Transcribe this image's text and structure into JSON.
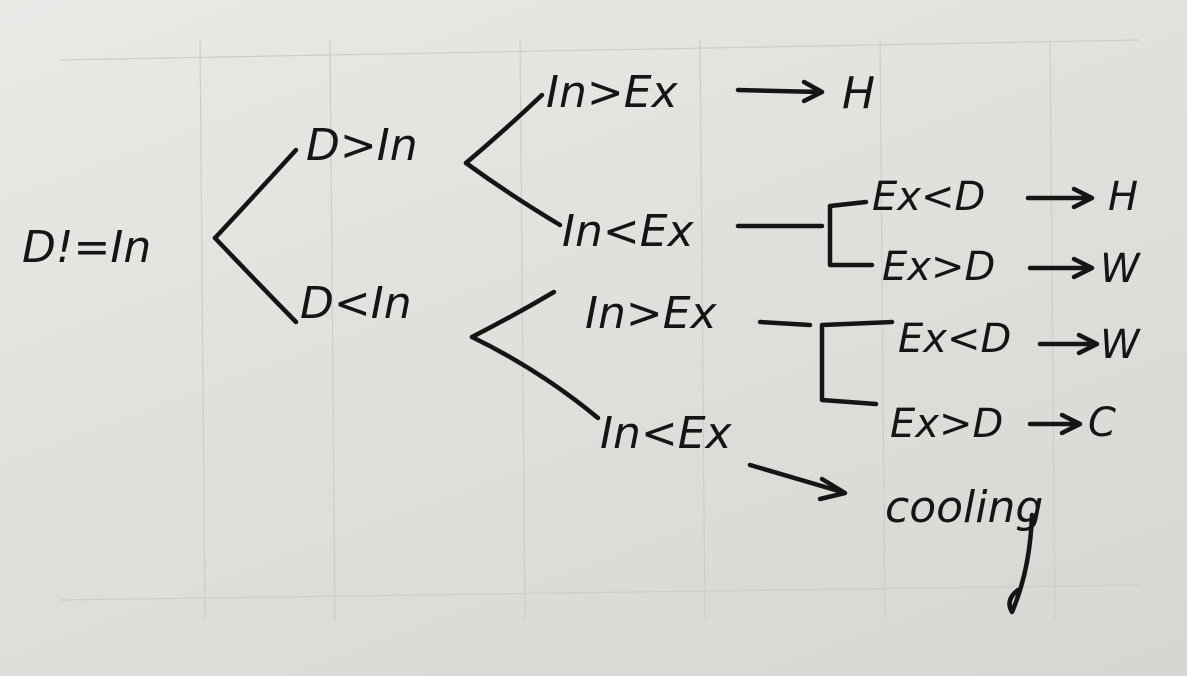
{
  "colors": {
    "paper": "#e6e4e0",
    "ink": "#151515"
  },
  "nodes": {
    "root": "D!=In",
    "d_gt_in": "D>In",
    "d_lt_in": "D<In",
    "a_in_gt_ex": "In>Ex",
    "a_in_lt_ex": "In<Ex",
    "b_in_gt_ex": "In>Ex",
    "b_in_lt_ex": "In<Ex",
    "a2_ex_lt_d": "Ex<D",
    "a2_ex_gt_d": "Ex>D",
    "b1_ex_lt_d": "Ex<D",
    "b1_ex_gt_d": "Ex>D"
  },
  "outcomes": {
    "a1": "H",
    "a2_1": "H",
    "a2_2": "W",
    "b1_1": "W",
    "b1_2": "C",
    "b2": "cooling"
  }
}
